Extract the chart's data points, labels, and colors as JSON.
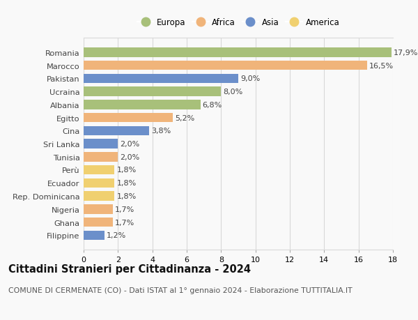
{
  "categories": [
    "Romania",
    "Marocco",
    "Pakistan",
    "Ucraina",
    "Albania",
    "Egitto",
    "Cina",
    "Sri Lanka",
    "Tunisia",
    "Perù",
    "Ecuador",
    "Rep. Dominicana",
    "Nigeria",
    "Ghana",
    "Filippine"
  ],
  "values": [
    17.9,
    16.5,
    9.0,
    8.0,
    6.8,
    5.2,
    3.8,
    2.0,
    2.0,
    1.8,
    1.8,
    1.8,
    1.7,
    1.7,
    1.2
  ],
  "labels": [
    "17,9%",
    "16,5%",
    "9,0%",
    "8,0%",
    "6,8%",
    "5,2%",
    "3,8%",
    "2,0%",
    "2,0%",
    "1,8%",
    "1,8%",
    "1,8%",
    "1,7%",
    "1,7%",
    "1,2%"
  ],
  "continent": [
    "Europa",
    "Africa",
    "Asia",
    "Europa",
    "Europa",
    "Africa",
    "Asia",
    "Asia",
    "Africa",
    "America",
    "America",
    "America",
    "Africa",
    "Africa",
    "Asia"
  ],
  "colors": {
    "Europa": "#a8c07a",
    "Africa": "#f0b47a",
    "Asia": "#6b8fca",
    "America": "#f0d070"
  },
  "legend_order": [
    "Europa",
    "Africa",
    "Asia",
    "America"
  ],
  "title": "Cittadini Stranieri per Cittadinanza - 2024",
  "subtitle": "COMUNE DI CERMENATE (CO) - Dati ISTAT al 1° gennaio 2024 - Elaborazione TUTTITALIA.IT",
  "xlim": [
    0,
    18
  ],
  "xticks": [
    0,
    2,
    4,
    6,
    8,
    10,
    12,
    14,
    16,
    18
  ],
  "background_color": "#f9f9f9",
  "grid_color": "#d8d8d8",
  "bar_height": 0.72,
  "label_fontsize": 8.0,
  "ytick_fontsize": 8.2,
  "xtick_fontsize": 8.0,
  "title_fontsize": 10.5,
  "subtitle_fontsize": 7.8
}
